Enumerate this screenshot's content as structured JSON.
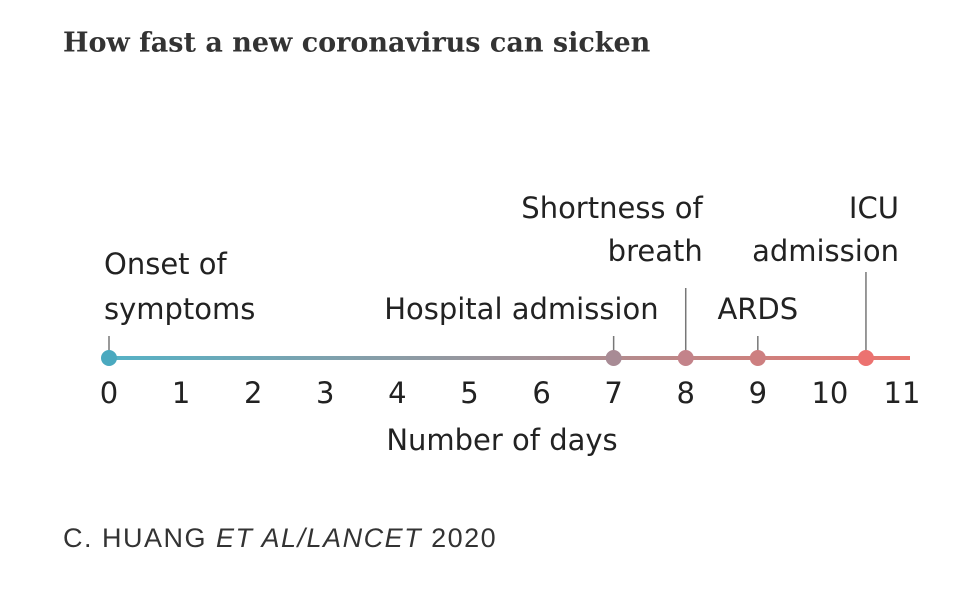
{
  "chart_data": {
    "type": "timeline",
    "title": "How fast a new coronavirus can sicken",
    "xlabel": "Number of days",
    "xlim": [
      0,
      11
    ],
    "xticks": [
      0,
      1,
      2,
      3,
      4,
      5,
      6,
      7,
      8,
      9,
      10,
      11
    ],
    "line_colors": [
      "#55b2c6",
      "#e9756d"
    ],
    "events": [
      {
        "x": 0,
        "label": [
          "Onset of",
          "symptoms"
        ],
        "color": "#4aa9bf"
      },
      {
        "x": 7,
        "label": [
          "Hospital admission"
        ],
        "color": "#a88b95"
      },
      {
        "x": 8,
        "label": [
          "Shortness of",
          "breath"
        ],
        "color": "#c3838a"
      },
      {
        "x": 9,
        "label": [
          "ARDS"
        ],
        "color": "#cd7f80"
      },
      {
        "x": 10.5,
        "label": [
          "ICU",
          "admission"
        ],
        "color": "#ec7270"
      }
    ],
    "source": [
      {
        "text": "C. HUANG",
        "italic": false
      },
      {
        "text": "ET AL/LANCET",
        "italic": true
      },
      {
        "text": "2020",
        "italic": false
      }
    ]
  }
}
